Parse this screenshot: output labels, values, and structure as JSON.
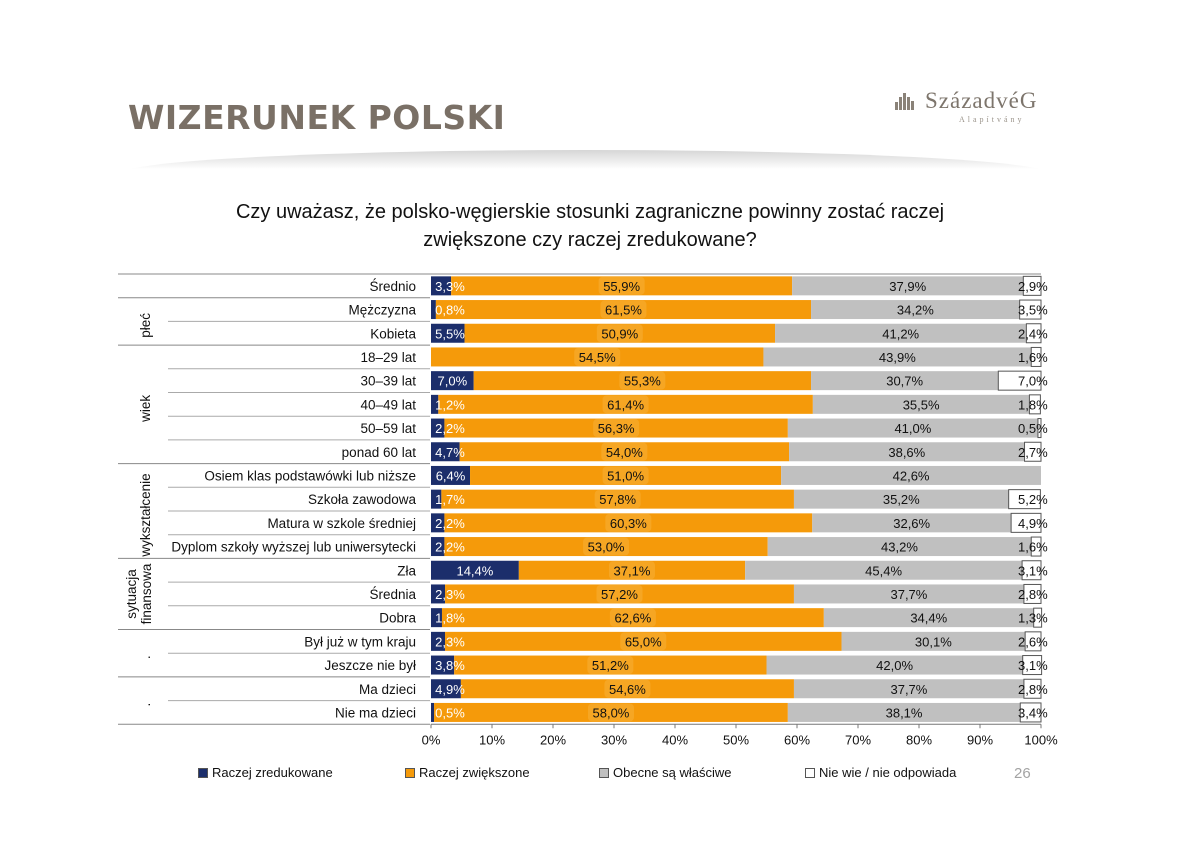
{
  "page": {
    "title": "WIZERUNEK POLSKI",
    "logo_text": "SzázadvéG",
    "logo_subtext": "Alapítvány",
    "question_line1": "Czy uważasz, że polsko-węgierskie stosunki zagraniczne powinny zostać raczej",
    "question_line2": "zwiększone czy raczej zredukowane?",
    "page_number": "26"
  },
  "chart_data": {
    "type": "bar",
    "orientation": "horizontal",
    "stacked": true,
    "xlim": [
      0,
      100
    ],
    "x_ticks": [
      "0%",
      "10%",
      "20%",
      "30%",
      "40%",
      "50%",
      "60%",
      "70%",
      "80%",
      "90%",
      "100%"
    ],
    "legend_position": "bottom",
    "grid": false,
    "series": [
      {
        "name": "Raczej zredukowane",
        "color": "#1c2e6b"
      },
      {
        "name": "Raczej zwiększone",
        "color": "#f59a0a"
      },
      {
        "name": "Obecne są właściwe",
        "color": "#c0c0c0"
      },
      {
        "name": "Nie wie / nie odpowiada",
        "color": "#ffffff"
      }
    ],
    "groups": [
      {
        "label": "",
        "rows": [
          0
        ]
      },
      {
        "label": "płeć",
        "rows": [
          1,
          2
        ]
      },
      {
        "label": "wiek",
        "rows": [
          3,
          4,
          5,
          6,
          7
        ]
      },
      {
        "label": "wykształcenie",
        "rows": [
          8,
          9,
          10,
          11
        ]
      },
      {
        "label": "sytuacja finansowa",
        "rows": [
          12,
          13,
          14
        ]
      },
      {
        "label": ".",
        "rows": [
          15,
          16
        ]
      },
      {
        "label": ".",
        "rows": [
          17,
          18
        ]
      }
    ],
    "rows": [
      {
        "label": "Średnio",
        "values": [
          3.3,
          55.9,
          37.9,
          2.9
        ],
        "labels": [
          "3,3%",
          "55,9%",
          "37,9%",
          "2,9%"
        ]
      },
      {
        "label": "Mężczyzna",
        "values": [
          0.8,
          61.5,
          34.2,
          3.5
        ],
        "labels": [
          "0,8%",
          "61,5%",
          "34,2%",
          "3,5%"
        ]
      },
      {
        "label": "Kobieta",
        "values": [
          5.5,
          50.9,
          41.2,
          2.4
        ],
        "labels": [
          "5,5%",
          "50,9%",
          "41,2%",
          "2,4%"
        ]
      },
      {
        "label": "18–29 lat",
        "values": [
          0,
          54.5,
          43.9,
          1.6
        ],
        "labels": [
          "",
          "54,5%",
          "43,9%",
          "1,6%"
        ]
      },
      {
        "label": "30–39 lat",
        "values": [
          7.0,
          55.3,
          30.7,
          7.0
        ],
        "labels": [
          "7,0%",
          "55,3%",
          "30,7%",
          "7,0%"
        ]
      },
      {
        "label": "40–49 lat",
        "values": [
          1.2,
          61.4,
          35.5,
          1.8
        ],
        "labels": [
          "1,2%",
          "61,4%",
          "35,5%",
          "1,8%"
        ]
      },
      {
        "label": "50–59 lat",
        "values": [
          2.2,
          56.3,
          41.0,
          0.5
        ],
        "labels": [
          "2,2%",
          "56,3%",
          "41,0%",
          "0,5%"
        ]
      },
      {
        "label": "ponad 60 lat",
        "values": [
          4.7,
          54.0,
          38.6,
          2.7
        ],
        "labels": [
          "4,7%",
          "54,0%",
          "38,6%",
          "2,7%"
        ]
      },
      {
        "label": "Osiem klas podstawówki lub niższe",
        "values": [
          6.4,
          51.0,
          42.6,
          0
        ],
        "labels": [
          "6,4%",
          "51,0%",
          "42,6%",
          ""
        ]
      },
      {
        "label": "Szkoła zawodowa",
        "values": [
          1.7,
          57.8,
          35.2,
          5.2
        ],
        "labels": [
          "1,7%",
          "57,8%",
          "35,2%",
          "5,2%"
        ]
      },
      {
        "label": "Matura w szkole średniej",
        "values": [
          2.2,
          60.3,
          32.6,
          4.9
        ],
        "labels": [
          "2,2%",
          "60,3%",
          "32,6%",
          "4,9%"
        ]
      },
      {
        "label": "Dyplom szkoły wyższej lub uniwersytecki",
        "values": [
          2.2,
          53.0,
          43.2,
          1.6
        ],
        "labels": [
          "2,2%",
          "53,0%",
          "43,2%",
          "1,6%"
        ]
      },
      {
        "label": "Zła",
        "values": [
          14.4,
          37.1,
          45.4,
          3.1
        ],
        "labels": [
          "14,4%",
          "37,1%",
          "45,4%",
          "3,1%"
        ]
      },
      {
        "label": "Średnia",
        "values": [
          2.3,
          57.2,
          37.7,
          2.8
        ],
        "labels": [
          "2,3%",
          "57,2%",
          "37,7%",
          "2,8%"
        ]
      },
      {
        "label": "Dobra",
        "values": [
          1.8,
          62.6,
          34.4,
          1.3
        ],
        "labels": [
          "1,8%",
          "62,6%",
          "34,4%",
          "1,3%"
        ]
      },
      {
        "label": "Był już w tym kraju",
        "values": [
          2.3,
          65.0,
          30.1,
          2.6
        ],
        "labels": [
          "2,3%",
          "65,0%",
          "30,1%",
          "2,6%"
        ]
      },
      {
        "label": "Jeszcze nie był",
        "values": [
          3.8,
          51.2,
          42.0,
          3.1
        ],
        "labels": [
          "3,8%",
          "51,2%",
          "42,0%",
          "3,1%"
        ]
      },
      {
        "label": "Ma dzieci",
        "values": [
          4.9,
          54.6,
          37.7,
          2.8
        ],
        "labels": [
          "4,9%",
          "54,6%",
          "37,7%",
          "2,8%"
        ]
      },
      {
        "label": "Nie ma dzieci",
        "values": [
          0.5,
          58.0,
          38.1,
          3.4
        ],
        "labels": [
          "0,5%",
          "58,0%",
          "38,1%",
          "3,4%"
        ]
      }
    ]
  }
}
